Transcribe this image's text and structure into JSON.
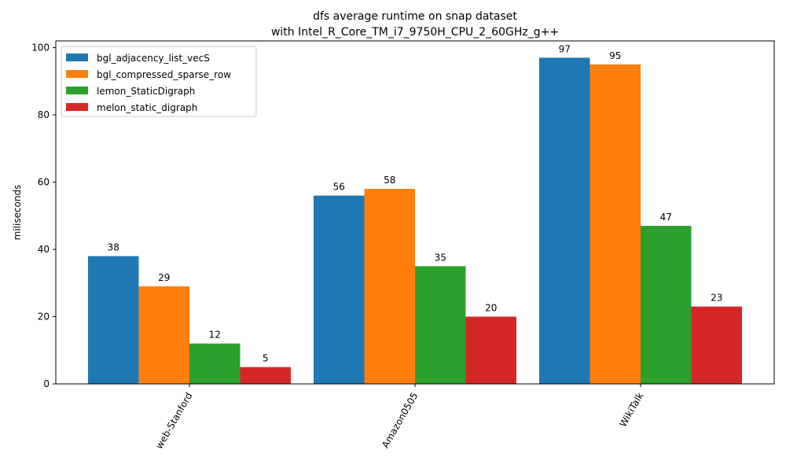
{
  "chart_data": {
    "type": "bar",
    "title": "dfs average runtime on snap dataset",
    "subtitle": "with Intel_R_Core_TM_i7_9750H_CPU_2_60GHz_g++",
    "xlabel": "",
    "ylabel": "miliseconds",
    "categories": [
      "web-Stanford",
      "Amazon0505",
      "WikiTalk"
    ],
    "ylim": [
      0,
      102
    ],
    "yticks": [
      0,
      20,
      40,
      60,
      80,
      100
    ],
    "grid": false,
    "legend_position": "top-left",
    "series": [
      {
        "name": "bgl_adjacency_list_vecS",
        "color": "#1f77b4",
        "values": [
          38,
          56,
          97
        ]
      },
      {
        "name": "bgl_compressed_sparse_row",
        "color": "#ff7f0e",
        "values": [
          29,
          58,
          95
        ]
      },
      {
        "name": "lemon_StaticDigraph",
        "color": "#2ca02c",
        "values": [
          12,
          35,
          47
        ]
      },
      {
        "name": "melon_static_digraph",
        "color": "#d62728",
        "values": [
          5,
          20,
          23
        ]
      }
    ]
  }
}
